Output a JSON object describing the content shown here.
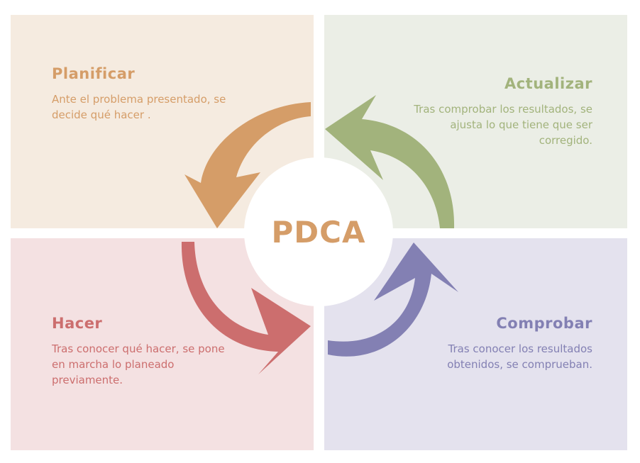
{
  "colors": {
    "plan_bg": "#f5ebe0",
    "plan_accent": "#d59d68",
    "update_bg": "#ebeee6",
    "update_accent": "#a2b37c",
    "do_bg": "#f4e1e2",
    "do_accent": "#cc6e6e",
    "check_bg": "#e4e2ee",
    "check_accent": "#8380b3"
  },
  "center": {
    "label": "PDCA"
  },
  "quadrants": {
    "plan": {
      "title": "Planificar",
      "text": "Ante el problema presentado, se decide qué hacer ."
    },
    "update": {
      "title": "Actualizar",
      "text": "Tras comprobar los resultados, se ajusta lo que tiene que ser corregido."
    },
    "do": {
      "title": "Hacer",
      "text": "Tras conocer qué hacer, se pone en marcha lo planeado previamente."
    },
    "check": {
      "title": "Comprobar",
      "text": "Tras conocer los resultados obtenidos, se comprueban."
    }
  }
}
